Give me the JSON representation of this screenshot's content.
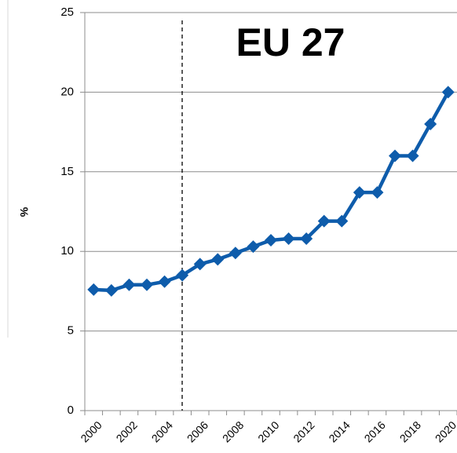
{
  "chart_data": {
    "type": "line",
    "title": "EU 27",
    "y_label": "%",
    "categories": [
      "2000",
      null,
      "2002",
      null,
      "2004",
      null,
      "2006",
      null,
      "2008",
      null,
      "2010",
      null,
      "2012",
      null,
      "2014",
      null,
      "2016",
      null,
      "2018",
      null,
      "2020"
    ],
    "series": [
      {
        "name": "EU 27",
        "color": "#0e5cab",
        "values": [
          7.6,
          7.55,
          7.9,
          7.9,
          8.1,
          8.5,
          9.2,
          9.5,
          9.9,
          10.3,
          10.7,
          10.8,
          10.8,
          11.9,
          11.9,
          13.7,
          13.7,
          16.0,
          16.0,
          18.0,
          20.0
        ]
      }
    ],
    "ylim": [
      0,
      25
    ],
    "yticks": [
      0,
      5,
      10,
      15,
      20,
      25
    ],
    "grid": true
  }
}
